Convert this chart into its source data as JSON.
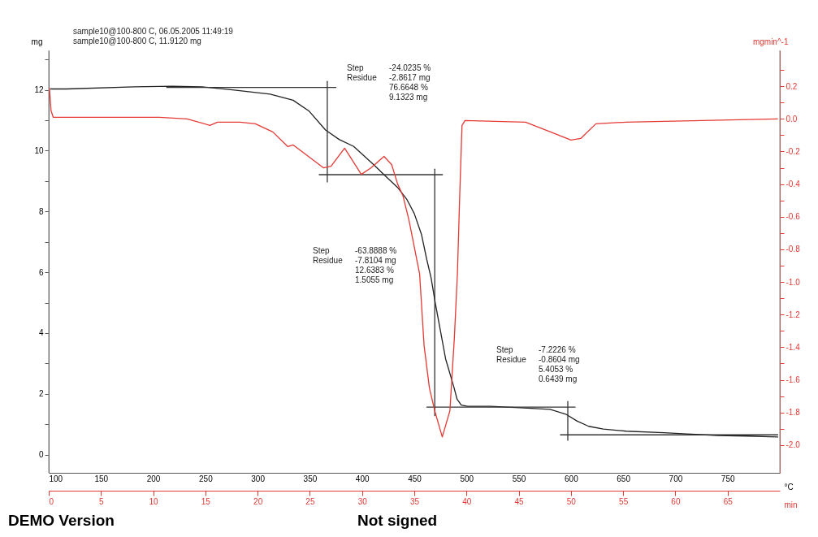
{
  "chart_data": {
    "type": "line",
    "ylabel": "mg",
    "y2label": "mgmin^-1",
    "xlabel": "°C",
    "x2label": "min",
    "xlim": [
      100,
      800
    ],
    "xticks": [
      100,
      150,
      200,
      250,
      300,
      350,
      400,
      450,
      500,
      550,
      600,
      650,
      700,
      750
    ],
    "x2lim": [
      0,
      70
    ],
    "x2ticks": [
      0,
      5,
      10,
      15,
      20,
      25,
      30,
      35,
      40,
      45,
      50,
      55,
      60,
      65
    ],
    "ylim": [
      -0.6,
      13.3
    ],
    "yticks": [
      0,
      {
        "value": 1,
        "label": null
      },
      2,
      {
        "value": 3,
        "label": null
      },
      4,
      {
        "value": 5,
        "label": null
      },
      6,
      {
        "value": 7,
        "label": null
      },
      8,
      {
        "value": 9,
        "label": null
      },
      10,
      {
        "value": 11,
        "label": null
      },
      12,
      {
        "value": 13,
        "label": null
      }
    ],
    "y2lim": [
      -2.17,
      0.42
    ],
    "y2ticks": [
      {
        "value": -2,
        "label": "-2.0"
      },
      {
        "value": -1.9,
        "label": null
      },
      -1.8,
      {
        "value": -1.7,
        "label": null
      },
      -1.6,
      {
        "value": -1.5,
        "label": null
      },
      -1.4,
      {
        "value": -1.3,
        "label": null
      },
      -1.2,
      {
        "value": -1.1,
        "label": null
      },
      {
        "value": -1,
        "label": "-1.0"
      },
      {
        "value": -0.9,
        "label": null
      },
      -0.8,
      {
        "value": -0.7,
        "label": null
      },
      -0.6,
      {
        "value": -0.5,
        "label": null
      },
      -0.4,
      {
        "value": -0.3,
        "label": null
      },
      -0.2,
      {
        "value": -0.1,
        "label": null
      },
      {
        "value": 0,
        "label": "0.0"
      },
      {
        "value": 0.1,
        "label": null
      },
      0.2,
      {
        "value": 0.3,
        "label": null
      }
    ],
    "series": [
      {
        "color": "#222222",
        "x": [
          102,
          117,
          182,
          218,
          247,
          276,
          312,
          334,
          349,
          365,
          378,
          392,
          412,
          421,
          434,
          443,
          450,
          457,
          462,
          466,
          470,
          475,
          480,
          484,
          488,
          491,
          495,
          501,
          523,
          551,
          580,
          595,
          606,
          617,
          631,
          653,
          689,
          711,
          740,
          769,
          798
        ],
        "values": [
          12.03,
          12.03,
          12.1,
          12.12,
          12.1,
          12.0,
          11.86,
          11.66,
          11.31,
          10.68,
          10.37,
          10.14,
          9.51,
          9.21,
          8.79,
          8.39,
          7.93,
          7.23,
          6.41,
          5.83,
          5.01,
          4.08,
          3.15,
          2.68,
          2.21,
          1.82,
          1.63,
          1.59,
          1.59,
          1.54,
          1.49,
          1.33,
          1.1,
          0.93,
          0.84,
          0.77,
          0.72,
          0.68,
          0.63,
          0.61,
          0.58
        ]
      },
      {
        "axis": "y2",
        "color": "#e53935",
        "x": [
          100.7,
          102.2,
          104.3,
          145.7,
          205.8,
          232.6,
          254.3,
          261.6,
          283.3,
          297.8,
          314.5,
          329,
          334.1,
          348.6,
          363,
          370.3,
          383.3,
          399.3,
          408.7,
          421,
          428.3,
          434.1,
          439.1,
          444.9,
          455.1,
          459.4,
          464.5,
          469.6,
          476.8,
          484.1,
          488.4,
          491.3,
          493.5,
          495.7,
          498.6,
          556.5,
          580.4,
          600,
          609.4,
          623.9,
          652.9,
          725.4,
          797.8
        ],
        "values": [
          0.19,
          0.05,
          0.01,
          0.01,
          0.01,
          0.0,
          -0.04,
          -0.02,
          -0.02,
          -0.03,
          -0.08,
          -0.17,
          -0.16,
          -0.23,
          -0.3,
          -0.29,
          -0.18,
          -0.34,
          -0.3,
          -0.23,
          -0.28,
          -0.4,
          -0.47,
          -0.62,
          -0.95,
          -1.39,
          -1.65,
          -1.79,
          -1.95,
          -1.79,
          -1.34,
          -0.95,
          -0.47,
          -0.04,
          -0.01,
          -0.02,
          -0.08,
          -0.13,
          -0.12,
          -0.03,
          -0.02,
          -0.01,
          0.0
        ]
      },
      {
        "type": "line",
        "color": "#333333",
        "x": [
          213,
          375
        ],
        "values": [
          12.08,
          12.08
        ]
      },
      {
        "type": "line",
        "color": "#333333",
        "x": [
          366.7,
          366.7
        ],
        "values": [
          12.28,
          8.97
        ]
      },
      {
        "type": "line",
        "color": "#333333",
        "x": [
          359,
          477
        ],
        "values": [
          9.21,
          9.21
        ]
      },
      {
        "type": "line",
        "color": "#333333",
        "x": [
          469.6,
          469.6
        ],
        "values": [
          9.39,
          1.28
        ]
      },
      {
        "type": "line",
        "color": "#333333",
        "x": [
          462,
          604
        ],
        "values": [
          1.56,
          1.56
        ]
      },
      {
        "type": "line",
        "color": "#333333",
        "x": [
          597,
          597
        ],
        "values": [
          1.75,
          0.47
        ]
      },
      {
        "type": "line",
        "color": "#333333",
        "x": [
          590,
          798
        ],
        "values": [
          0.65,
          0.65
        ]
      }
    ],
    "annotations": [
      "sample10@100-800 C, 06.05.2005 11:49:19",
      "sample10@100-800 C, 11.9120 mg",
      "DEMO Version",
      "Not signed",
      "Step\n\nResidue",
      "-24.0235 %\n-2.8617 mg\n76.6648 %\n9.1323 mg",
      "Step\n\nResidue",
      "-63.8888 %\n-7.8104 mg\n12.6383 %\n1.5055 mg",
      "Step\n\nResidue",
      "-7.2226 %\n-0.8604 mg\n5.4053 %\n0.6439 mg"
    ]
  }
}
